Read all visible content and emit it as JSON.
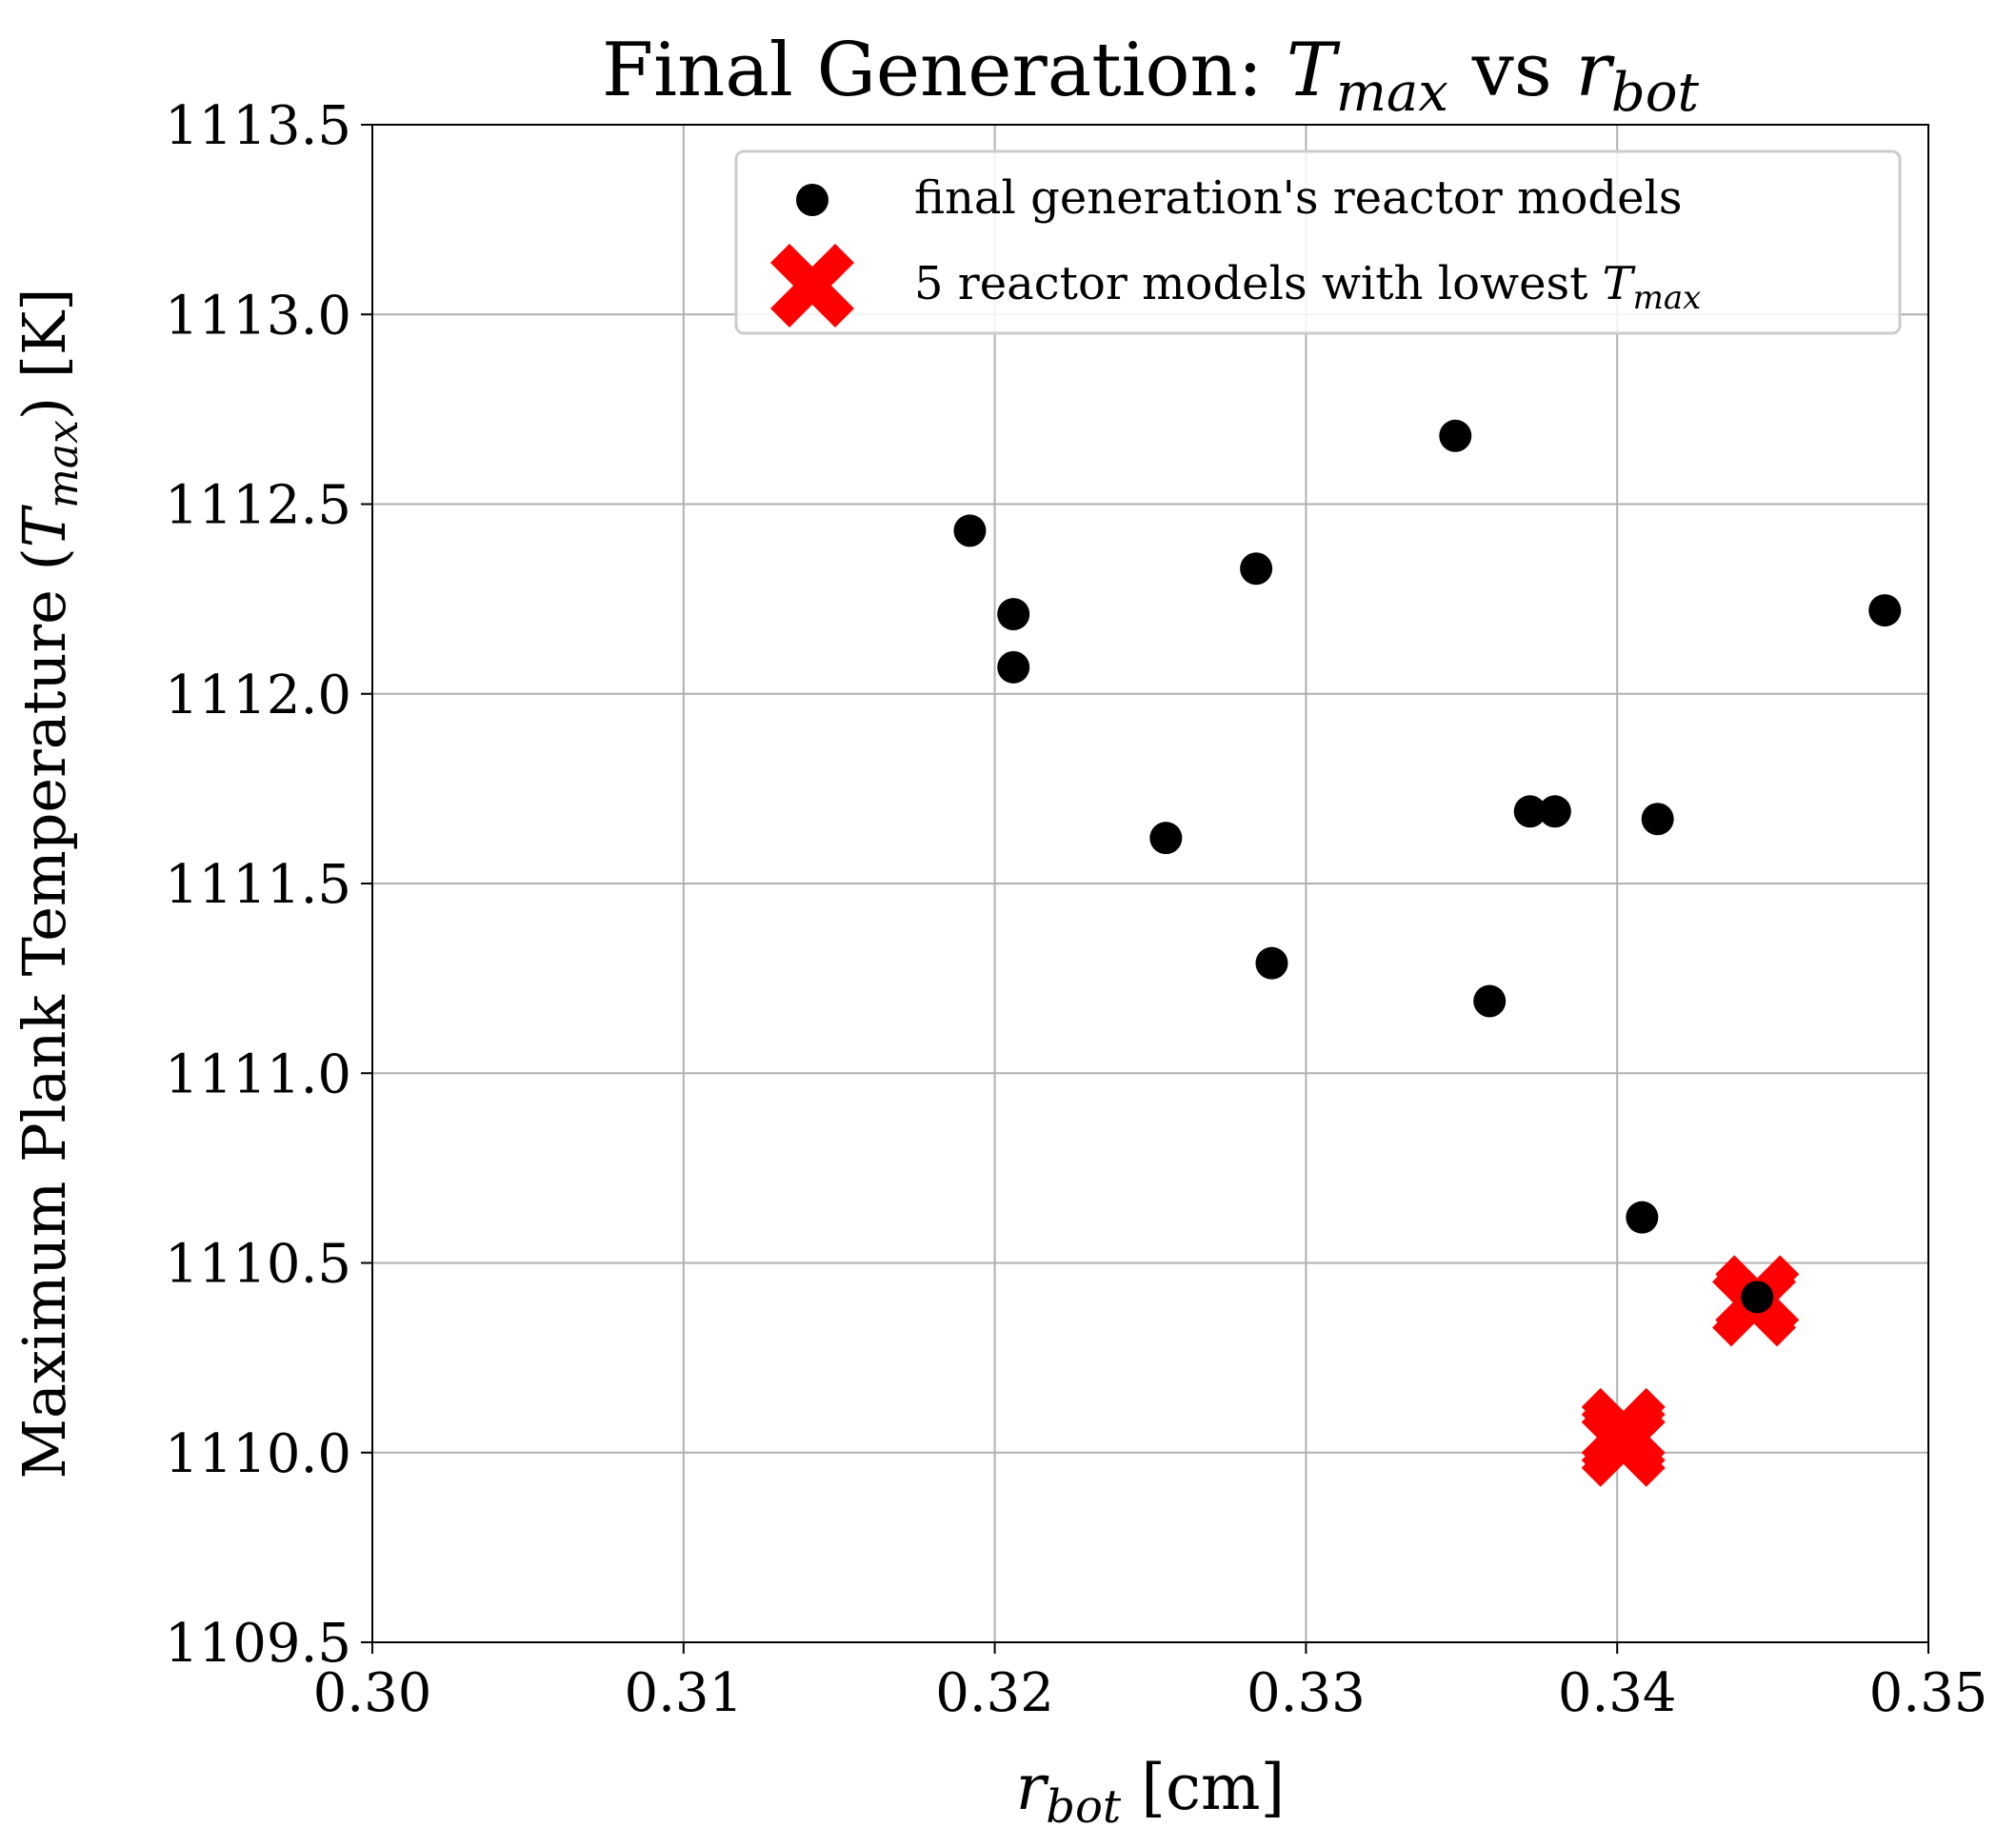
{
  "chart_data": {
    "type": "scatter",
    "title": {
      "prefix": "Final Generation: ",
      "var1": "T",
      "var1_sub": "max",
      "mid": " vs ",
      "var2": "r",
      "var2_sub": "bot"
    },
    "xlabel": {
      "var": "r",
      "sub": "bot",
      "unit": " [cm]"
    },
    "ylabel": {
      "prefix": "Maximum Plank Temperature (",
      "var": "T",
      "sub": "max",
      "suffix": ") [K]"
    },
    "xlim": [
      0.3,
      0.35
    ],
    "ylim": [
      1109.5,
      1113.5
    ],
    "xticks": [
      "0.30",
      "0.31",
      "0.32",
      "0.33",
      "0.34",
      "0.35"
    ],
    "yticks": [
      "1109.5",
      "1110.0",
      "1110.5",
      "1111.0",
      "1111.5",
      "1112.0",
      "1112.5",
      "1113.0",
      "1113.5"
    ],
    "grid": true,
    "legend_position": "top-right",
    "series": [
      {
        "name": "final generation's reactor models",
        "marker": "circle",
        "color": "#000000",
        "points": [
          [
            0.3192,
            1112.43
          ],
          [
            0.3206,
            1112.21
          ],
          [
            0.3206,
            1112.07
          ],
          [
            0.3255,
            1111.62
          ],
          [
            0.3284,
            1112.33
          ],
          [
            0.3289,
            1111.29
          ],
          [
            0.3348,
            1112.68
          ],
          [
            0.3359,
            1111.19
          ],
          [
            0.3372,
            1111.69
          ],
          [
            0.338,
            1111.69
          ],
          [
            0.3413,
            1111.67
          ],
          [
            0.3408,
            1110.62
          ],
          [
            0.3445,
            1110.41
          ],
          [
            0.3486,
            1112.22
          ]
        ]
      },
      {
        "name_prefix": "5 reactor models with lowest ",
        "name_var": "T",
        "name_sub": "max",
        "marker": "x",
        "color": "#ff0000",
        "points": [
          [
            0.3402,
            1110.02
          ],
          [
            0.3402,
            1110.04
          ],
          [
            0.3402,
            1110.06
          ],
          [
            0.3444,
            1110.39
          ],
          [
            0.3445,
            1110.41
          ]
        ]
      }
    ]
  }
}
